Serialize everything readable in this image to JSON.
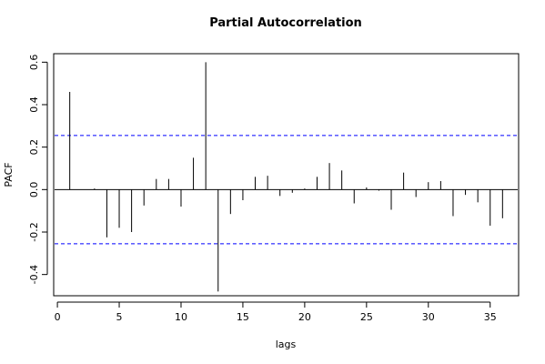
{
  "chart_data": {
    "type": "bar",
    "title": "Partial Autocorrelation",
    "xlabel": "lags",
    "ylabel": "PACF",
    "xlim": [
      -0.3,
      37.3
    ],
    "ylim": [
      -0.5,
      0.64
    ],
    "xticks": [
      0,
      5,
      10,
      15,
      20,
      25,
      30,
      35
    ],
    "yticks": [
      -0.4,
      -0.2,
      0.0,
      0.2,
      0.4,
      0.6
    ],
    "ytick_labels": [
      "-0.4",
      "-0.2",
      "0.0",
      "0.2",
      "0.4",
      "0.6"
    ],
    "x": [
      1,
      2,
      3,
      4,
      5,
      6,
      7,
      8,
      9,
      10,
      11,
      12,
      13,
      14,
      15,
      16,
      17,
      18,
      19,
      20,
      21,
      22,
      23,
      24,
      25,
      26,
      27,
      28,
      29,
      30,
      31,
      32,
      33,
      34,
      35,
      36
    ],
    "values": [
      0.46,
      0.0,
      0.005,
      -0.225,
      -0.18,
      -0.2,
      -0.075,
      0.05,
      0.05,
      -0.08,
      0.15,
      0.6,
      -0.48,
      -0.115,
      -0.05,
      0.06,
      0.065,
      -0.03,
      -0.015,
      0.005,
      0.06,
      0.125,
      0.09,
      -0.065,
      0.01,
      -0.005,
      -0.095,
      0.08,
      -0.035,
      0.035,
      0.04,
      -0.125,
      -0.025,
      -0.06,
      -0.17,
      -0.135
    ],
    "confidence_bounds": [
      0.255,
      -0.255
    ],
    "bound_color": "#0000ff",
    "zero_line": true,
    "grid": false
  }
}
